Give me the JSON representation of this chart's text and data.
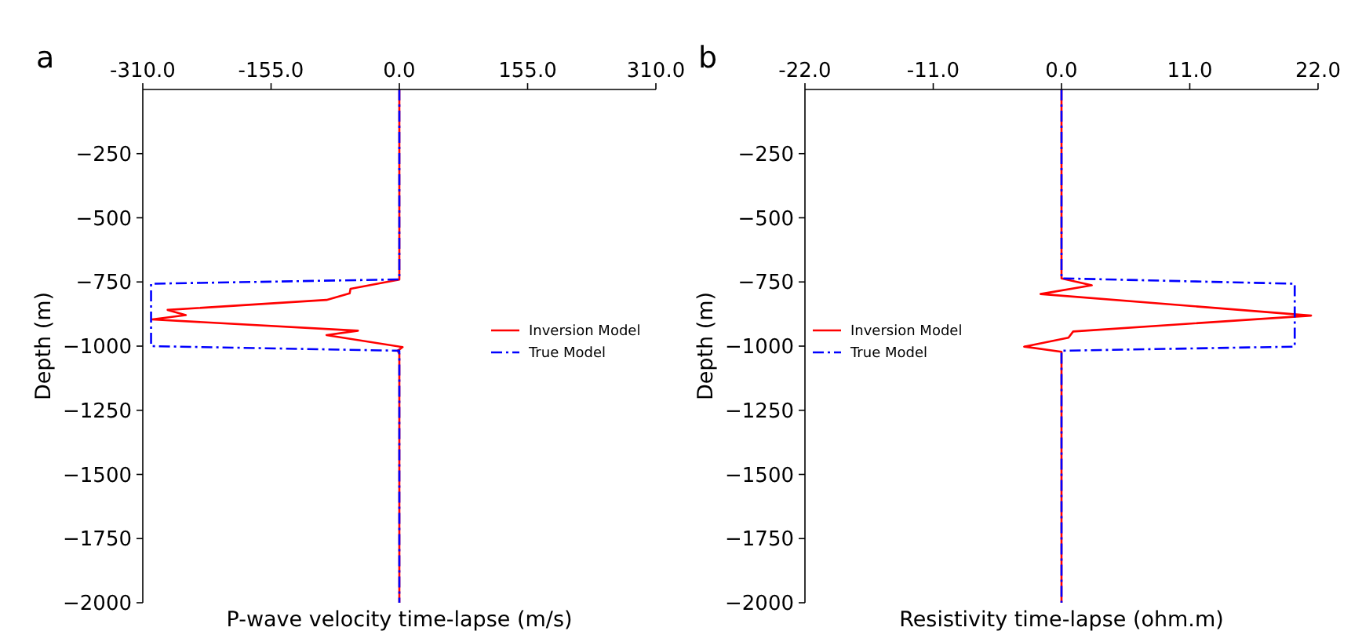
{
  "chart_data": [
    {
      "type": "line",
      "title": "a",
      "xlabel": "P-wave velocity time-lapse (m/s)",
      "ylabel": "Depth (m)",
      "xlim": [
        -310,
        310
      ],
      "xticks": [
        {
          "value": -310,
          "label": "-310.0"
        },
        {
          "value": -155,
          "label": "-155.0"
        },
        {
          "value": 0,
          "label": "0.0"
        },
        {
          "value": 155,
          "label": "155.0"
        },
        {
          "value": 310,
          "label": "310.0"
        }
      ],
      "ylim": [
        -2000,
        0
      ],
      "yticks": [
        {
          "value": -250,
          "label": "−250"
        },
        {
          "value": -500,
          "label": "−500"
        },
        {
          "value": -750,
          "label": "−750"
        },
        {
          "value": -1000,
          "label": "−1000"
        },
        {
          "value": -1250,
          "label": "−1250"
        },
        {
          "value": -1500,
          "label": "−1500"
        },
        {
          "value": -1750,
          "label": "−1750"
        },
        {
          "value": -2000,
          "label": "−2000"
        }
      ],
      "legend": "center right",
      "grid": false,
      "series": [
        {
          "name": "Inversion Model",
          "color": "#ff0000",
          "line_style": "solid",
          "x": [
            0,
            0,
            -59,
            -60,
            -88,
            -280,
            -258,
            -299,
            -50,
            -88,
            4,
            -2,
            0,
            0
          ],
          "values": [
            0,
            -741,
            -777,
            -794,
            -820,
            -859,
            -879,
            -896,
            -940,
            -957,
            -1004,
            -1018,
            -1030,
            -2000
          ]
        },
        {
          "name": "True Model",
          "color": "#0000ff",
          "line_style": "dashdot",
          "x": [
            0,
            0,
            -300,
            -300,
            0,
            0
          ],
          "values": [
            0,
            -740,
            -757,
            -1000,
            -1018,
            -2000
          ]
        }
      ]
    },
    {
      "type": "line",
      "title": "b",
      "xlabel": "Resistivity time-lapse (ohm.m)",
      "ylabel": "Depth (m)",
      "xlim": [
        -22,
        22
      ],
      "xticks": [
        {
          "value": -22,
          "label": "-22.0"
        },
        {
          "value": -11,
          "label": "-11.0"
        },
        {
          "value": 0,
          "label": "0.0"
        },
        {
          "value": 11,
          "label": "11.0"
        },
        {
          "value": 22,
          "label": "22.0"
        }
      ],
      "ylim": [
        -2000,
        0
      ],
      "yticks": [
        {
          "value": -250,
          "label": "−250"
        },
        {
          "value": -500,
          "label": "−500"
        },
        {
          "value": -750,
          "label": "−750"
        },
        {
          "value": -1000,
          "label": "−1000"
        },
        {
          "value": -1250,
          "label": "−1250"
        },
        {
          "value": -1500,
          "label": "−1500"
        },
        {
          "value": -1750,
          "label": "−1750"
        },
        {
          "value": -2000,
          "label": "−2000"
        }
      ],
      "legend": "center left",
      "grid": false,
      "series": [
        {
          "name": "Inversion Model",
          "color": "#ff0000",
          "line_style": "solid",
          "x": [
            0,
            0,
            2.6,
            -1.8,
            21.4,
            1.0,
            0.6,
            -3.2,
            0,
            0
          ],
          "values": [
            0,
            -736,
            -763,
            -797,
            -881,
            -943,
            -967,
            -1002,
            -1022,
            -2000
          ]
        },
        {
          "name": "True Model",
          "color": "#0000ff",
          "line_style": "dashdot",
          "x": [
            0,
            0,
            20,
            20,
            0,
            0
          ],
          "values": [
            0,
            -736,
            -757,
            -1002,
            -1018,
            -2000
          ]
        }
      ]
    }
  ]
}
